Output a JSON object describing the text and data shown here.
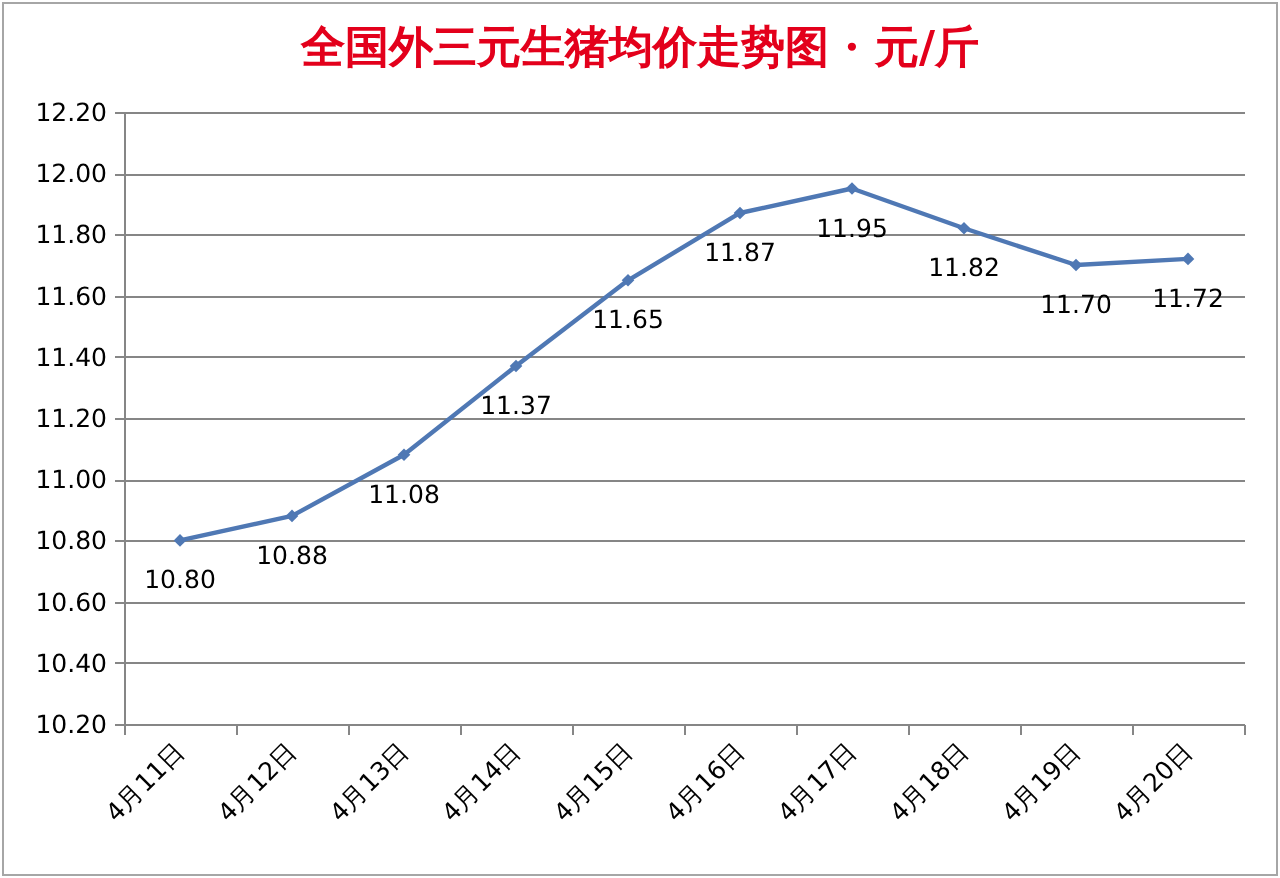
{
  "chart_data": {
    "type": "line",
    "title": "全国外三元生猪均价走势图 · 元/斤",
    "categories": [
      "4月11日",
      "4月12日",
      "4月13日",
      "4月14日",
      "4月15日",
      "4月16日",
      "4月17日",
      "4月18日",
      "4月19日",
      "4月20日"
    ],
    "series": [
      {
        "color": "#4f78b4",
        "values": [
          10.8,
          10.88,
          11.08,
          11.37,
          11.65,
          11.87,
          11.95,
          11.82,
          11.7,
          11.72
        ],
        "value_labels": [
          "10.80",
          "10.88",
          "11.08",
          "11.37",
          "11.65",
          "11.87",
          "11.95",
          "11.82",
          "11.70",
          "11.72"
        ]
      }
    ],
    "ylim": [
      10.2,
      12.2
    ],
    "yticks": [
      {
        "value": 10.2,
        "label": "10.20"
      },
      {
        "value": 10.4,
        "label": "10.40"
      },
      {
        "value": 10.6,
        "label": "10.60"
      },
      {
        "value": 10.8,
        "label": "10.80"
      },
      {
        "value": 11.0,
        "label": "11.00"
      },
      {
        "value": 11.2,
        "label": "11.20"
      },
      {
        "value": 11.4,
        "label": "11.40"
      },
      {
        "value": 11.6,
        "label": "11.60"
      },
      {
        "value": 11.8,
        "label": "11.80"
      },
      {
        "value": 12.0,
        "label": "12.00"
      },
      {
        "value": 12.2,
        "label": "12.20"
      }
    ],
    "grid": "y",
    "marker": "diamond",
    "line_style": "solid"
  }
}
